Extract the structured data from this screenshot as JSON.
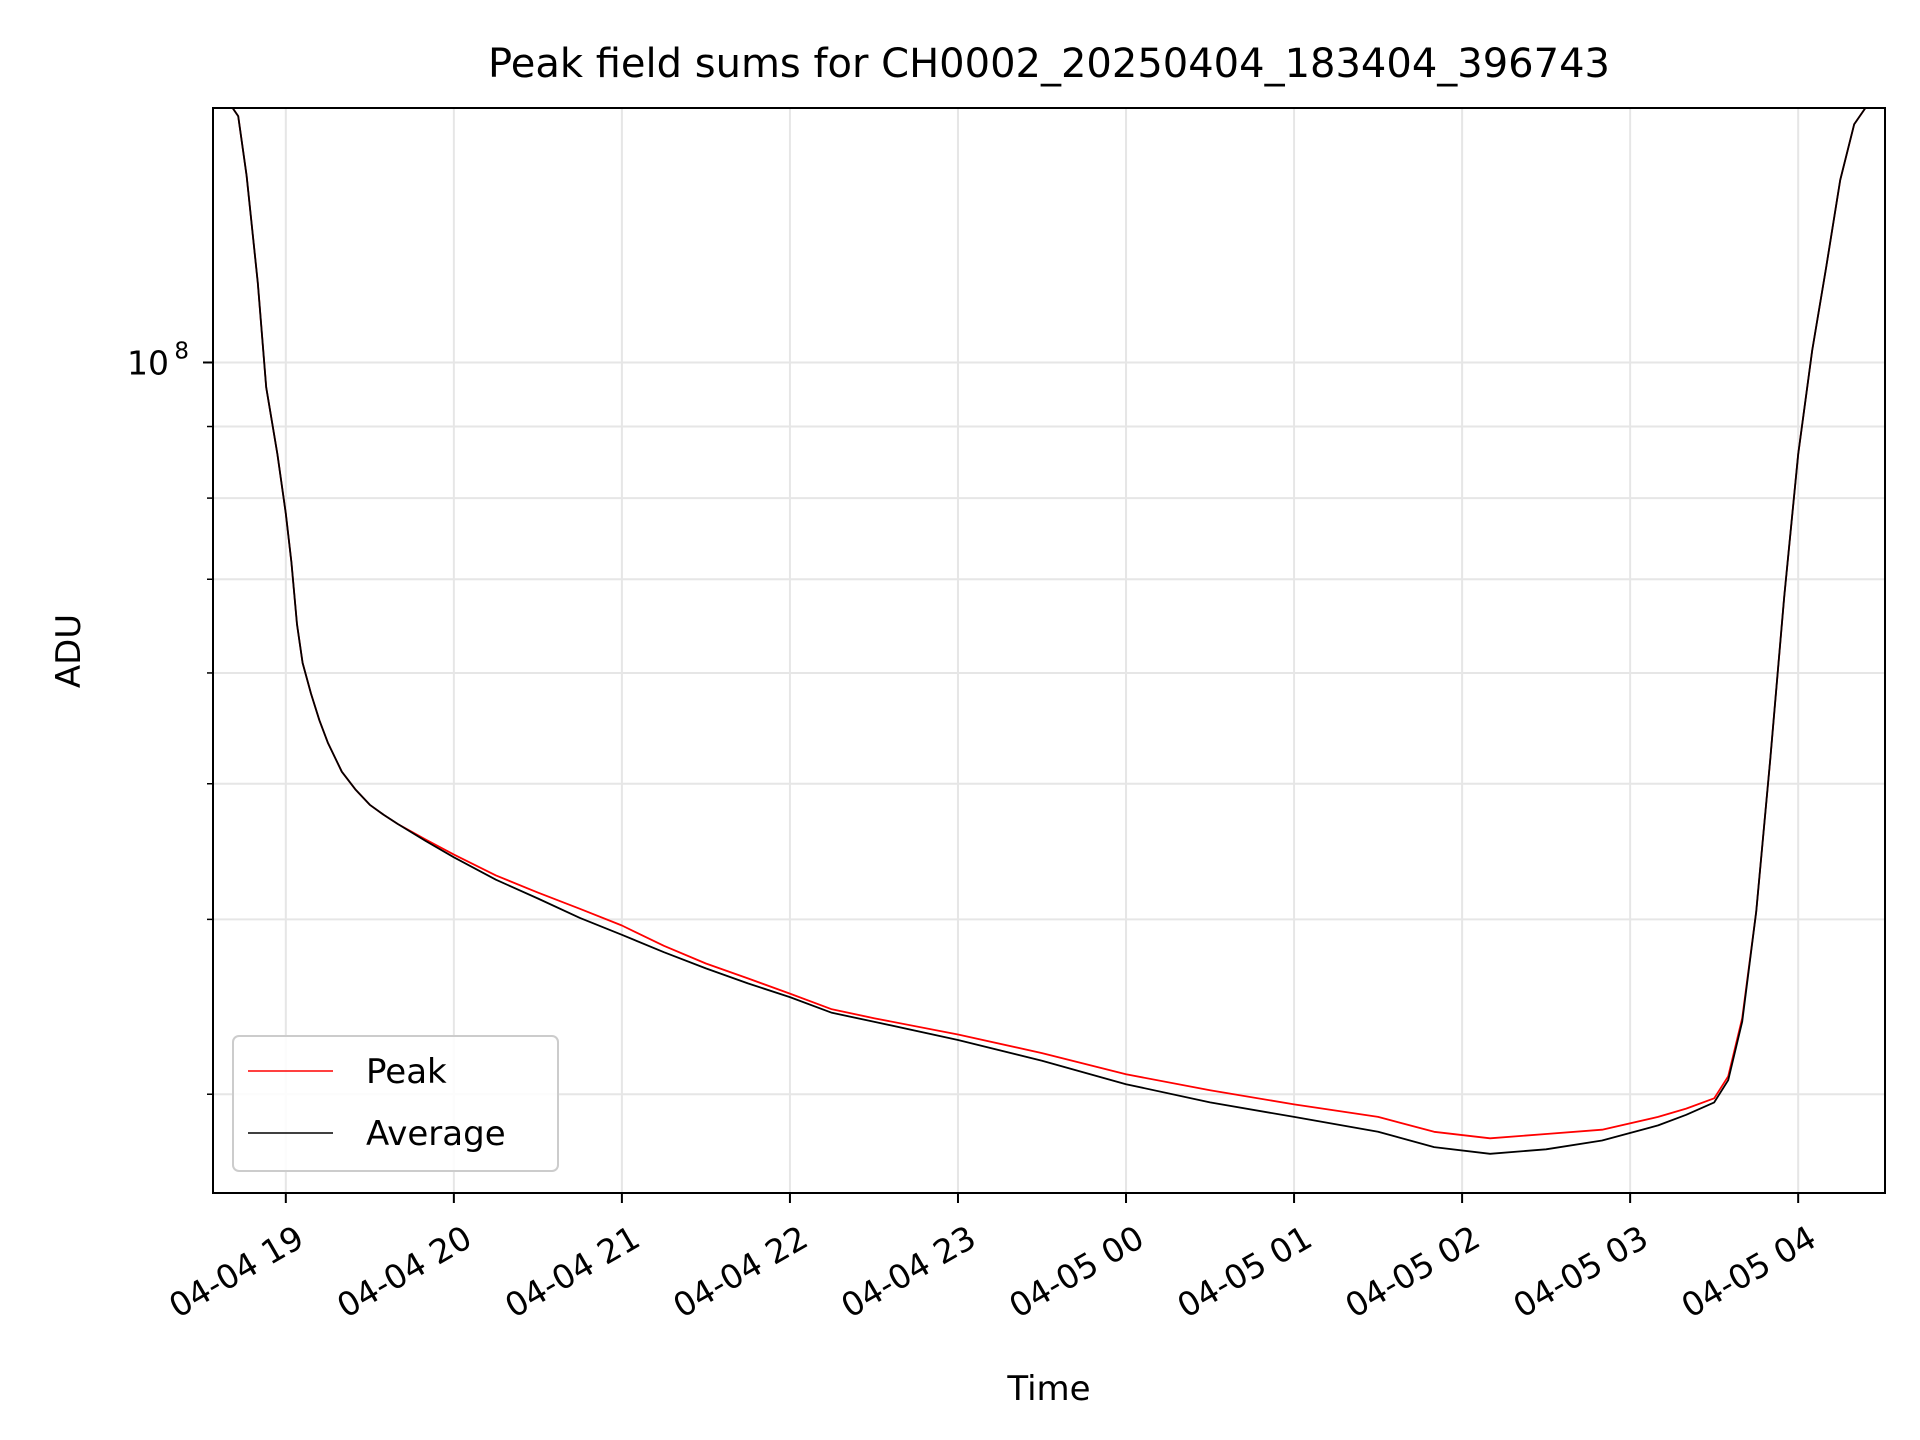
{
  "chart_data": {
    "type": "line",
    "title": "Peak field sums for CH0002_20250404_183404_396743",
    "xlabel": "Time",
    "ylabel": "ADU",
    "y_scale": "log",
    "ylim": [
      25500000.0,
      152000000.0
    ],
    "xlim": [
      "2025-04-04 18:34",
      "2025-04-05 04:31"
    ],
    "grid": true,
    "legend_position": "lower-left",
    "x_ticks": [
      {
        "value": "2025-04-04 19:00",
        "label": "04-04 19"
      },
      {
        "value": "2025-04-04 20:00",
        "label": "04-04 20"
      },
      {
        "value": "2025-04-04 21:00",
        "label": "04-04 21"
      },
      {
        "value": "2025-04-04 22:00",
        "label": "04-04 22"
      },
      {
        "value": "2025-04-04 23:00",
        "label": "04-04 23"
      },
      {
        "value": "2025-04-05 00:00",
        "label": "04-05 00"
      },
      {
        "value": "2025-04-05 01:00",
        "label": "04-05 01"
      },
      {
        "value": "2025-04-05 02:00",
        "label": "04-05 02"
      },
      {
        "value": "2025-04-05 03:00",
        "label": "04-05 03"
      },
      {
        "value": "2025-04-05 04:00",
        "label": "04-05 04"
      }
    ],
    "y_ticks": [
      {
        "value": 100000000,
        "base": "10",
        "exp": "8"
      }
    ],
    "series": [
      {
        "name": "Peak",
        "color": "#ff0000",
        "x": [
          "2025-04-04 18:41",
          "2025-04-04 18:43",
          "2025-04-04 18:46",
          "2025-04-04 18:50",
          "2025-04-04 18:53",
          "2025-04-04 18:57",
          "2025-04-04 19:00",
          "2025-04-04 19:02",
          "2025-04-04 19:04",
          "2025-04-04 19:06",
          "2025-04-04 19:09",
          "2025-04-04 19:12",
          "2025-04-04 19:15",
          "2025-04-04 19:20",
          "2025-04-04 19:25",
          "2025-04-04 19:30",
          "2025-04-04 19:35",
          "2025-04-04 19:40",
          "2025-04-04 19:50",
          "2025-04-04 20:00",
          "2025-04-04 20:15",
          "2025-04-04 20:30",
          "2025-04-04 20:45",
          "2025-04-04 21:00",
          "2025-04-04 21:15",
          "2025-04-04 21:30",
          "2025-04-04 21:45",
          "2025-04-04 22:00",
          "2025-04-04 22:15",
          "2025-04-04 22:30",
          "2025-04-04 23:00",
          "2025-04-04 23:30",
          "2025-04-05 00:00",
          "2025-04-05 00:30",
          "2025-04-05 01:00",
          "2025-04-05 01:30",
          "2025-04-05 01:50",
          "2025-04-05 02:10",
          "2025-04-05 02:30",
          "2025-04-05 02:50",
          "2025-04-05 03:10",
          "2025-04-05 03:20",
          "2025-04-05 03:30",
          "2025-04-05 03:35",
          "2025-04-05 03:40",
          "2025-04-05 03:45",
          "2025-04-05 03:50",
          "2025-04-05 03:55",
          "2025-04-05 04:00",
          "2025-04-05 04:05",
          "2025-04-05 04:10",
          "2025-04-05 04:15",
          "2025-04-05 04:20",
          "2025-04-05 04:24"
        ],
        "values": [
          152000000,
          150000000,
          136000000,
          114000000,
          96000000,
          86000000,
          78000000,
          72000000,
          65000000,
          61000000,
          58000000,
          55500000,
          53500000,
          51000000,
          49500000,
          48300000,
          47500000,
          46800000,
          45600000,
          44500000,
          43000000,
          41800000,
          40700000,
          39600000,
          38300000,
          37200000,
          36300000,
          35400000,
          34500000,
          34000000,
          33100000,
          32100000,
          31000000,
          30200000,
          29500000,
          28900000,
          28200000,
          27900000,
          28100000,
          28300000,
          28900000,
          29300000,
          29800000,
          30900000,
          34000000,
          40500000,
          52000000,
          68000000,
          86000000,
          102000000,
          117000000,
          135000000,
          148000000,
          152000000
        ]
      },
      {
        "name": "Average",
        "color": "#000000",
        "x": [
          "2025-04-04 18:41",
          "2025-04-04 18:43",
          "2025-04-04 18:46",
          "2025-04-04 18:50",
          "2025-04-04 18:53",
          "2025-04-04 18:57",
          "2025-04-04 19:00",
          "2025-04-04 19:02",
          "2025-04-04 19:04",
          "2025-04-04 19:06",
          "2025-04-04 19:09",
          "2025-04-04 19:12",
          "2025-04-04 19:15",
          "2025-04-04 19:20",
          "2025-04-04 19:25",
          "2025-04-04 19:30",
          "2025-04-04 19:35",
          "2025-04-04 19:40",
          "2025-04-04 19:50",
          "2025-04-04 20:00",
          "2025-04-04 20:15",
          "2025-04-04 20:30",
          "2025-04-04 20:45",
          "2025-04-04 21:00",
          "2025-04-04 21:15",
          "2025-04-04 21:30",
          "2025-04-04 21:45",
          "2025-04-04 22:00",
          "2025-04-04 22:15",
          "2025-04-04 22:30",
          "2025-04-04 23:00",
          "2025-04-04 23:30",
          "2025-04-05 00:00",
          "2025-04-05 00:30",
          "2025-04-05 01:00",
          "2025-04-05 01:30",
          "2025-04-05 01:50",
          "2025-04-05 02:10",
          "2025-04-05 02:30",
          "2025-04-05 02:50",
          "2025-04-05 03:10",
          "2025-04-05 03:20",
          "2025-04-05 03:30",
          "2025-04-05 03:35",
          "2025-04-05 03:40",
          "2025-04-05 03:45",
          "2025-04-05 03:50",
          "2025-04-05 03:55",
          "2025-04-05 04:00",
          "2025-04-05 04:05",
          "2025-04-05 04:10",
          "2025-04-05 04:15",
          "2025-04-05 04:20",
          "2025-04-05 04:24"
        ],
        "values": [
          152000000,
          150000000,
          136000000,
          114000000,
          96000000,
          86000000,
          78000000,
          72000000,
          65000000,
          61000000,
          58000000,
          55500000,
          53500000,
          51000000,
          49500000,
          48300000,
          47500000,
          46800000,
          45500000,
          44300000,
          42700000,
          41400000,
          40100000,
          39000000,
          37900000,
          36900000,
          36000000,
          35200000,
          34300000,
          33800000,
          32800000,
          31700000,
          30500000,
          29600000,
          28900000,
          28200000,
          27500000,
          27200000,
          27400000,
          27800000,
          28500000,
          29000000,
          29600000,
          30700000,
          33800000,
          40500000,
          52000000,
          68000000,
          86000000,
          102000000,
          117000000,
          135000000,
          148000000,
          152000000
        ]
      }
    ]
  }
}
